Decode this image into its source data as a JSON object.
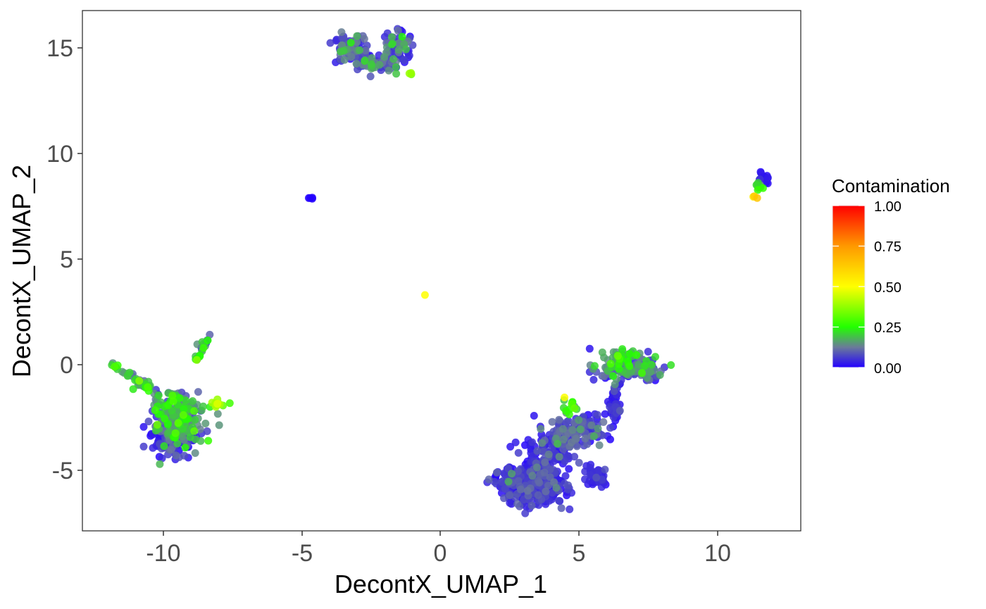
{
  "chart_data": {
    "type": "scatter",
    "title": "",
    "xlabel": "DecontX_UMAP_1",
    "ylabel": "DecontX_UMAP_2",
    "xlim": [
      -12.93,
      13.03
    ],
    "ylim": [
      -7.87,
      16.77
    ],
    "xticks": [
      -10,
      -5,
      0,
      5,
      10
    ],
    "xtick_labels": [
      "-10",
      "-5",
      "0",
      "5",
      "10"
    ],
    "yticks": [
      -5,
      0,
      5,
      10,
      15
    ],
    "ytick_labels": [
      "-5",
      "0",
      "5",
      "10",
      "15"
    ],
    "grid": false,
    "theme": "bordered white panel, no gridlines",
    "color_variable": "Contamination",
    "legend": {
      "title": "Contamination",
      "position": "right",
      "type": "colorbar",
      "breaks": [
        0.0,
        0.25,
        0.5,
        0.75,
        1.0
      ],
      "labels": [
        "0.00",
        "0.25",
        "0.50",
        "0.75",
        "1.00"
      ],
      "gradient": [
        {
          "value": 0.0,
          "color": "#2200ff"
        },
        {
          "value": 0.125,
          "color": "#6a7a9a"
        },
        {
          "value": 0.25,
          "color": "#22ff00"
        },
        {
          "value": 0.5,
          "color": "#ffff00"
        },
        {
          "value": 0.75,
          "color": "#ff9900"
        },
        {
          "value": 1.0,
          "color": "#ff0000"
        }
      ]
    },
    "clusters": [
      {
        "name": "top-cluster",
        "center": [
          -2.4,
          14.9
        ],
        "blobs": [
          {
            "cx": -3.2,
            "cy": 14.95,
            "sx": 0.3,
            "sy": 0.3,
            "n": 90,
            "cmean": 0.06,
            "cspread": 0.06
          },
          {
            "cx": -2.3,
            "cy": 14.3,
            "sx": 0.35,
            "sy": 0.2,
            "n": 50,
            "cmean": 0.1,
            "cspread": 0.08
          },
          {
            "cx": -1.6,
            "cy": 15.0,
            "sx": 0.25,
            "sy": 0.45,
            "n": 60,
            "cmean": 0.08,
            "cspread": 0.07
          },
          {
            "cx": -1.1,
            "cy": 13.8,
            "sx": 0.05,
            "sy": 0.05,
            "n": 3,
            "cmean": 0.36,
            "cspread": 0.02
          }
        ]
      },
      {
        "name": "isolated-blue-point",
        "center": [
          -4.7,
          7.9
        ],
        "blobs": [
          {
            "cx": -4.7,
            "cy": 7.9,
            "sx": 0.04,
            "sy": 0.03,
            "n": 4,
            "cmean": 0.0,
            "cspread": 0.0
          }
        ]
      },
      {
        "name": "isolated-yellow-point",
        "center": [
          -0.55,
          3.3
        ],
        "blobs": [
          {
            "cx": -0.55,
            "cy": 3.3,
            "sx": 0.0,
            "sy": 0.0,
            "n": 1,
            "cmean": 0.5,
            "cspread": 0.0
          }
        ]
      },
      {
        "name": "right-small-cluster",
        "center": [
          11.6,
          8.4
        ],
        "blobs": [
          {
            "cx": 11.7,
            "cy": 8.8,
            "sx": 0.1,
            "sy": 0.12,
            "n": 14,
            "cmean": 0.02,
            "cspread": 0.02
          },
          {
            "cx": 11.5,
            "cy": 8.4,
            "sx": 0.07,
            "sy": 0.12,
            "n": 8,
            "cmean": 0.2,
            "cspread": 0.06
          },
          {
            "cx": 11.35,
            "cy": 7.95,
            "sx": 0.04,
            "sy": 0.05,
            "n": 3,
            "cmean": 0.62,
            "cspread": 0.03
          }
        ]
      },
      {
        "name": "left-cluster",
        "center": [
          -9.7,
          -2.5
        ],
        "blobs": [
          {
            "cx": -9.6,
            "cy": -2.9,
            "sx": 0.45,
            "sy": 0.6,
            "n": 260,
            "cmean": 0.08,
            "cspread": 0.08
          },
          {
            "cx": -9.55,
            "cy": -3.5,
            "sx": 0.35,
            "sy": 0.25,
            "n": 80,
            "cmean": 0.02,
            "cspread": 0.03
          },
          {
            "cx": -9.4,
            "cy": -2.0,
            "sx": 0.5,
            "sy": 0.4,
            "n": 80,
            "cmean": 0.16,
            "cspread": 0.08
          },
          {
            "cx": -11.0,
            "cy": -0.8,
            "sx": 0.6,
            "sy": 0.4,
            "n": 40,
            "cmean": 0.17,
            "cspread": 0.08,
            "line": [
              [
                -11.8,
                0.0
              ],
              [
                -10.2,
                -1.4
              ]
            ]
          },
          {
            "cx": -8.0,
            "cy": -1.85,
            "sx": 0.3,
            "sy": 0.1,
            "n": 12,
            "cmean": 0.38,
            "cspread": 0.06
          },
          {
            "cx": -8.6,
            "cy": 0.7,
            "sx": 0.1,
            "sy": 0.3,
            "n": 20,
            "cmean": 0.17,
            "cspread": 0.1,
            "line": [
              [
                -8.8,
                0.3
              ],
              [
                -8.4,
                1.2
              ]
            ]
          }
        ]
      },
      {
        "name": "bottom-right-cluster",
        "center": [
          4.0,
          -4.0
        ],
        "blobs": [
          {
            "cx": 3.2,
            "cy": -5.7,
            "sx": 0.65,
            "sy": 0.45,
            "n": 300,
            "cmean": 0.03,
            "cspread": 0.04
          },
          {
            "cx": 3.9,
            "cy": -4.6,
            "sx": 0.45,
            "sy": 0.6,
            "n": 120,
            "cmean": 0.04,
            "cspread": 0.04
          },
          {
            "cx": 4.6,
            "cy": -3.3,
            "sx": 0.6,
            "sy": 0.4,
            "n": 120,
            "cmean": 0.07,
            "cspread": 0.05
          },
          {
            "cx": 5.4,
            "cy": -2.9,
            "sx": 0.3,
            "sy": 0.35,
            "n": 50,
            "cmean": 0.05,
            "cspread": 0.04
          },
          {
            "cx": 4.7,
            "cy": -2.0,
            "sx": 0.2,
            "sy": 0.2,
            "n": 12,
            "cmean": 0.22,
            "cspread": 0.06
          },
          {
            "cx": 4.5,
            "cy": -1.6,
            "sx": 0.02,
            "sy": 0.02,
            "n": 1,
            "cmean": 0.5,
            "cspread": 0.0
          },
          {
            "cx": 5.6,
            "cy": -5.3,
            "sx": 0.25,
            "sy": 0.25,
            "n": 50,
            "cmean": 0.02,
            "cspread": 0.03
          },
          {
            "cx": 6.3,
            "cy": -1.7,
            "sx": 0.15,
            "sy": 0.45,
            "n": 40,
            "cmean": 0.03,
            "cspread": 0.03
          },
          {
            "cx": 6.7,
            "cy": -0.2,
            "sx": 0.55,
            "sy": 0.3,
            "n": 120,
            "cmean": 0.1,
            "cspread": 0.07
          },
          {
            "cx": 6.5,
            "cy": 0.4,
            "sx": 0.35,
            "sy": 0.15,
            "n": 30,
            "cmean": 0.2,
            "cspread": 0.06
          },
          {
            "cx": 7.5,
            "cy": -0.4,
            "sx": 0.2,
            "sy": 0.2,
            "n": 25,
            "cmean": 0.09,
            "cspread": 0.06
          }
        ]
      }
    ]
  },
  "axes": {
    "x_title": "DecontX_UMAP_1",
    "y_title": "DecontX_UMAP_2",
    "x_ticks": [
      "-10",
      "-5",
      "0",
      "5",
      "10"
    ],
    "y_ticks": [
      "-5",
      "0",
      "5",
      "10",
      "15"
    ]
  },
  "legend": {
    "title": "Contamination",
    "labels": [
      "1.00",
      "0.75",
      "0.50",
      "0.25",
      "0.00"
    ]
  }
}
